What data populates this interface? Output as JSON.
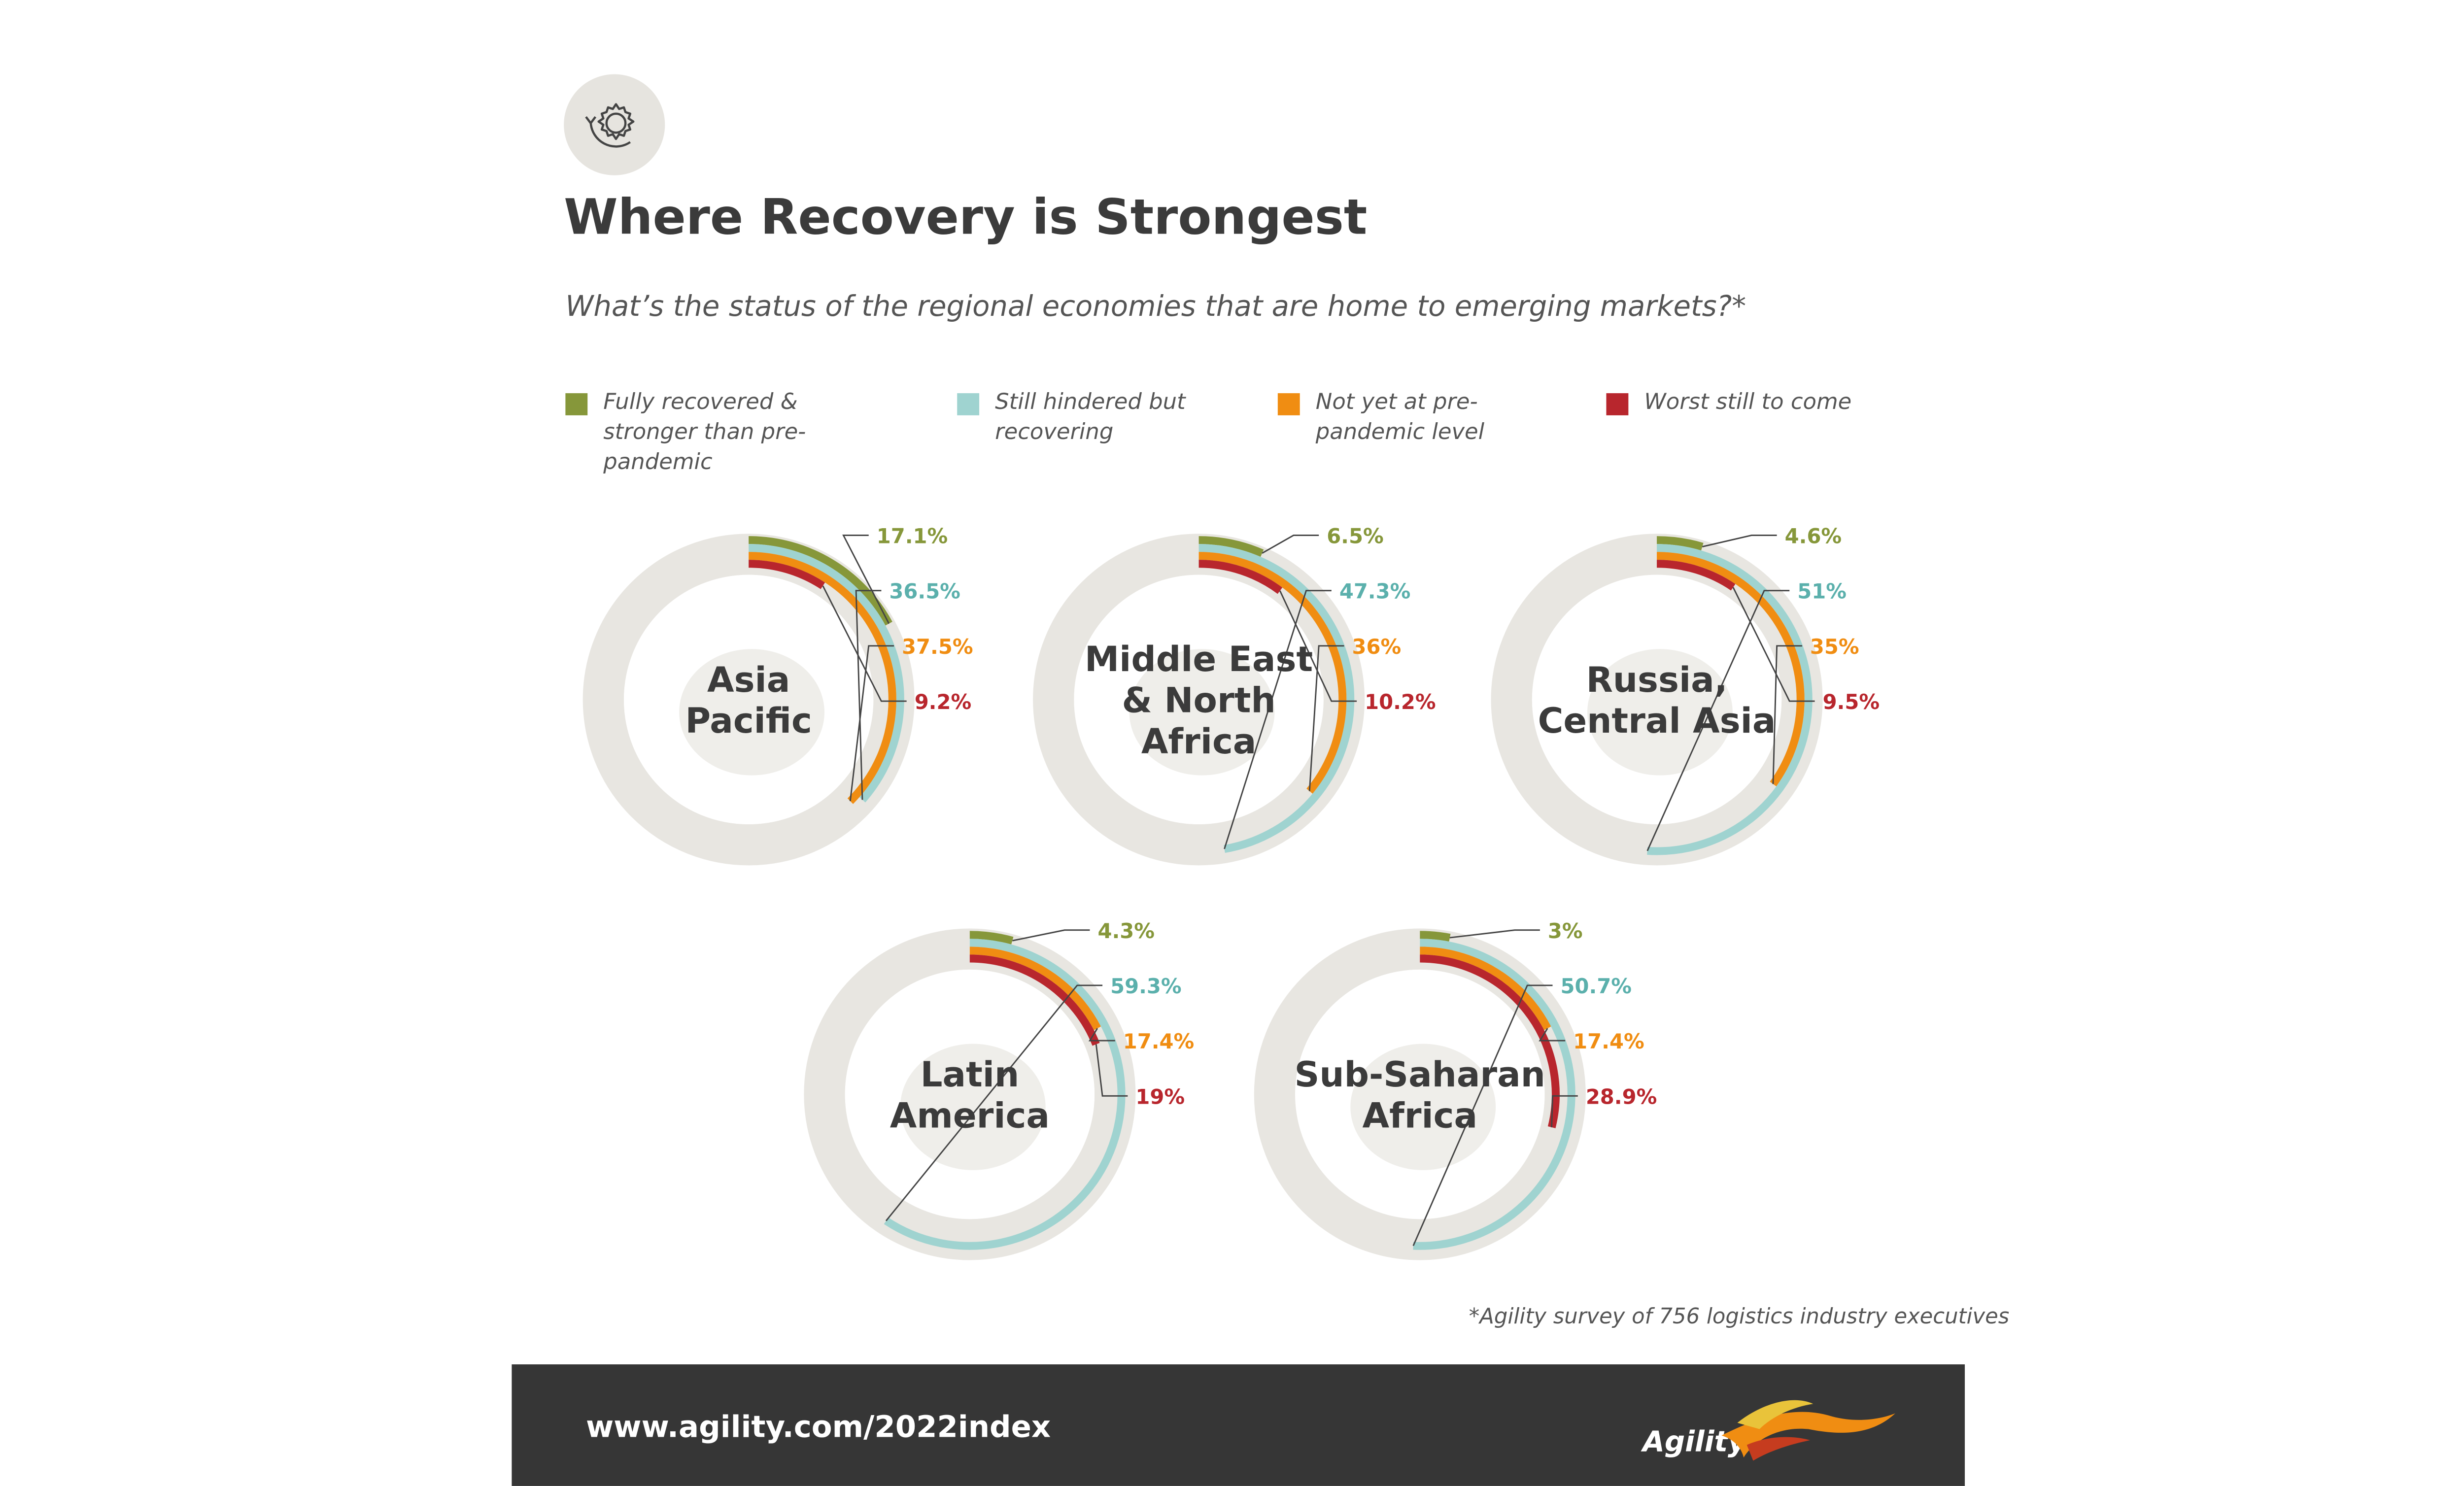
{
  "title": "Where Recovery is Strongest",
  "subtitle": "What’s the status of the regional economies that are home to emerging markets?*",
  "legend": [
    {
      "label": "Fully recovered & stronger than pre-pandemic",
      "color": "#86973a"
    },
    {
      "label": "Still hindered but recovering",
      "color": "#9fd3d0"
    },
    {
      "label": "Not yet at pre-pandemic level",
      "color": "#f08d12"
    },
    {
      "label": "Worst still to come",
      "color": "#b8262d"
    }
  ],
  "footnote": "*Agility survey of 756 logistics industry executives",
  "footer": {
    "url": "www.agility.com/2022index",
    "logo_text": "Agility"
  },
  "icons": {
    "header": "recovery-gear-icon",
    "logo": "agility-bird-icon"
  },
  "chart_data": [
    {
      "type": "radial-bar",
      "region": "Asia Pacific",
      "categories": [
        "Fully recovered & stronger than pre-pandemic",
        "Still hindered but recovering",
        "Not yet at pre-pandemic level",
        "Worst still to come"
      ],
      "values": [
        17.1,
        36.5,
        37.5,
        9.2
      ],
      "labels": [
        "17.1%",
        "36.5%",
        "37.5%",
        "9.2%"
      ]
    },
    {
      "type": "radial-bar",
      "region": "Middle East & North Africa",
      "categories": [
        "Fully recovered & stronger than pre-pandemic",
        "Still hindered but recovering",
        "Not yet at pre-pandemic level",
        "Worst still to come"
      ],
      "values": [
        6.5,
        47.3,
        36,
        10.2
      ],
      "labels": [
        "6.5%",
        "47.3%",
        "36%",
        "10.2%"
      ]
    },
    {
      "type": "radial-bar",
      "region": "Russia, Central Asia",
      "categories": [
        "Fully recovered & stronger than pre-pandemic",
        "Still hindered but recovering",
        "Not yet at pre-pandemic level",
        "Worst still to come"
      ],
      "values": [
        4.6,
        51,
        35,
        9.5
      ],
      "labels": [
        "4.6%",
        "51%",
        "35%",
        "9.5%"
      ]
    },
    {
      "type": "radial-bar",
      "region": "Latin America",
      "categories": [
        "Fully recovered & stronger than pre-pandemic",
        "Still hindered but recovering",
        "Not yet at pre-pandemic level",
        "Worst still to come"
      ],
      "values": [
        4.3,
        59.3,
        17.4,
        19
      ],
      "labels": [
        "4.3%",
        "59.3%",
        "17.4%",
        "19%"
      ]
    },
    {
      "type": "radial-bar",
      "region": "Sub-Saharan Africa",
      "categories": [
        "Fully recovered & stronger than pre-pandemic",
        "Still hindered but recovering",
        "Not yet at pre-pandemic level",
        "Worst still to come"
      ],
      "values": [
        3,
        50.7,
        17.4,
        28.9
      ],
      "labels": [
        "3%",
        "50.7%",
        "17.4%",
        "28.9%"
      ]
    }
  ]
}
